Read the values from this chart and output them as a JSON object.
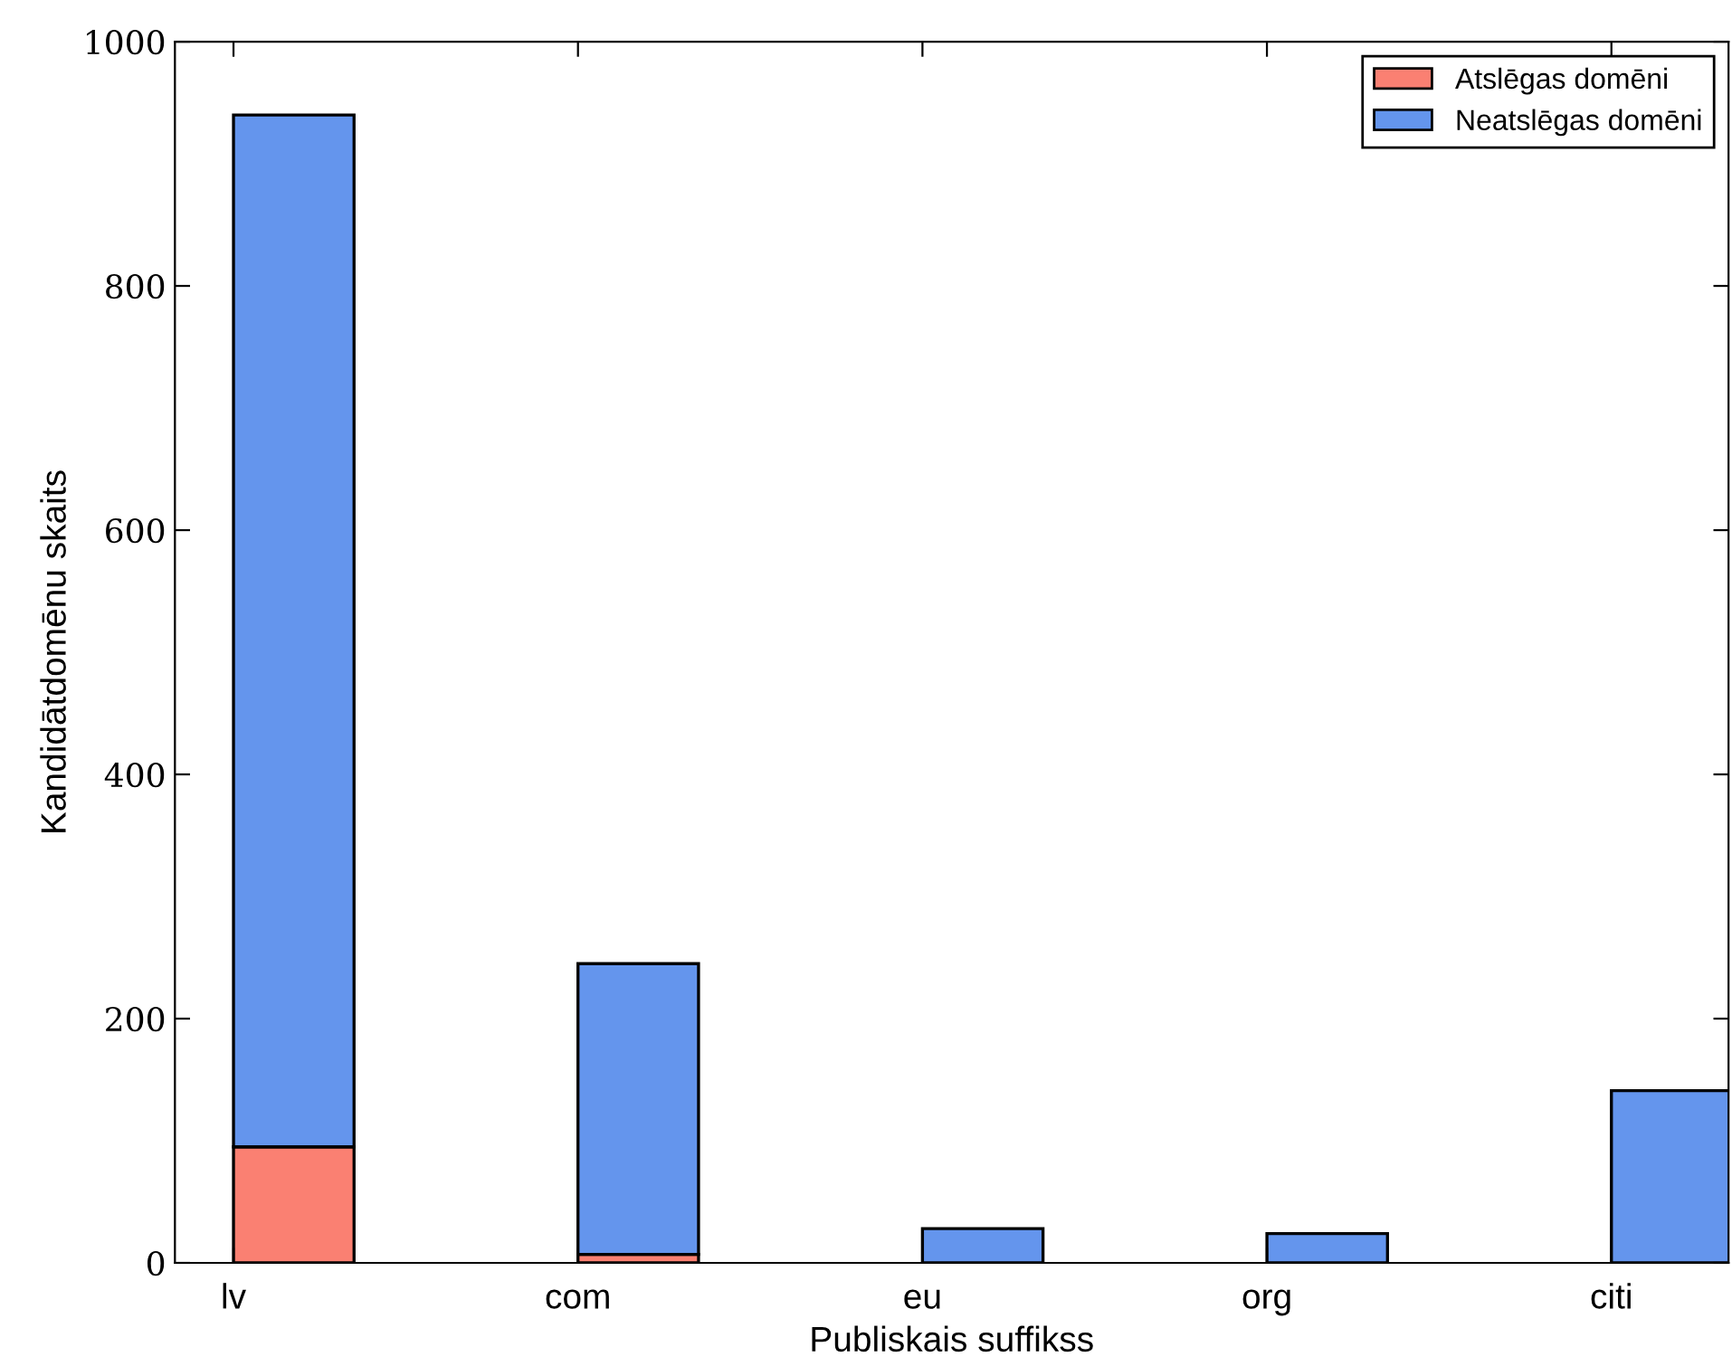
{
  "chart_data": {
    "type": "bar",
    "stacked": true,
    "xlabel": "Publiskais suffikss",
    "ylabel": "Kandidātdomēnu skaits",
    "categories": [
      "lv",
      "com",
      "eu",
      "org",
      "citi"
    ],
    "series": [
      {
        "name": "Atslēgas domēni",
        "color": "#fa8072",
        "values": [
          95,
          7,
          null,
          null,
          null
        ]
      },
      {
        "name": "Neatslēgas domēni",
        "color": "#6495ed",
        "values": [
          845,
          238,
          28,
          24,
          141
        ]
      }
    ],
    "ylim": [
      0,
      1000
    ],
    "yticks": [
      0,
      200,
      400,
      600,
      800,
      1000
    ],
    "legend": "top right"
  }
}
